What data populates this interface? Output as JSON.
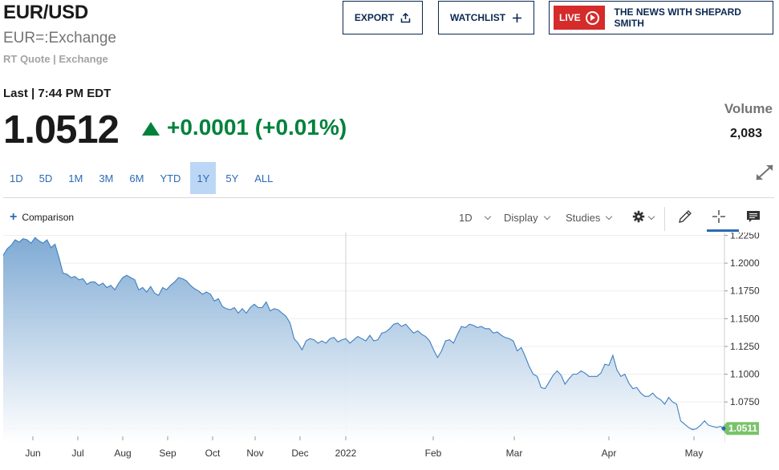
{
  "header": {
    "symbol": "EUR/USD",
    "exchange": "EUR=:Exchange",
    "quote_source": "RT Quote | Exchange",
    "export_label": "EXPORT",
    "watchlist_label": "WATCHLIST",
    "live_label": "LIVE",
    "live_show": "THE NEWS WITH SHEPARD SMITH"
  },
  "quote": {
    "last_time": "Last | 7:44 PM EDT",
    "price": "1.0512",
    "change": "+0.0001 (+0.01%)",
    "change_color": "#00823b",
    "volume_label": "Volume",
    "volume_value": "2,083"
  },
  "ranges": [
    "1D",
    "5D",
    "1M",
    "3M",
    "6M",
    "YTD",
    "1Y",
    "5Y",
    "ALL"
  ],
  "active_range": "1Y",
  "toolbar": {
    "comparison_label": "Comparison",
    "interval_label": "1D",
    "display_label": "Display",
    "studies_label": "Studies"
  },
  "icons": [
    "share-icon",
    "plus-icon",
    "play-icon",
    "expand-icon",
    "gear-icon",
    "pencil-icon",
    "crosshair-icon",
    "comment-icon"
  ],
  "colors": {
    "navy": "#0a2850",
    "link_blue": "#2b6ab5",
    "live_red": "#d52b2b",
    "up_green": "#00823b",
    "last_tag": "#79c36a"
  },
  "chart_data": {
    "type": "area",
    "x_tick_labels": [
      "Jun",
      "Jul",
      "Aug",
      "Sep",
      "Oct",
      "Nov",
      "Dec",
      "2022",
      "Feb",
      "Mar",
      "Apr",
      "May"
    ],
    "y_tick_labels": [
      "1.2250",
      "1.2000",
      "1.1750",
      "1.1500",
      "1.1250",
      "1.1000",
      "1.0750"
    ],
    "ylim": [
      1.0455,
      1.2275
    ],
    "last_value_label": "1.0511",
    "last_value": 1.0511,
    "series": [
      {
        "values": [
          1.207,
          1.213,
          1.216,
          1.221,
          1.219,
          1.222,
          1.221,
          1.218,
          1.223,
          1.22,
          1.218,
          1.221,
          1.214,
          1.217,
          1.205,
          1.191,
          1.19,
          1.187,
          1.188,
          1.185,
          1.186,
          1.181,
          1.183,
          1.183,
          1.18,
          1.182,
          1.178,
          1.18,
          1.176,
          1.182,
          1.187,
          1.189,
          1.187,
          1.185,
          1.176,
          1.178,
          1.174,
          1.179,
          1.173,
          1.171,
          1.178,
          1.176,
          1.18,
          1.183,
          1.187,
          1.186,
          1.184,
          1.18,
          1.177,
          1.175,
          1.172,
          1.174,
          1.172,
          1.166,
          1.168,
          1.161,
          1.159,
          1.158,
          1.16,
          1.155,
          1.159,
          1.155,
          1.16,
          1.163,
          1.16,
          1.16,
          1.165,
          1.157,
          1.159,
          1.158,
          1.155,
          1.152,
          1.146,
          1.132,
          1.128,
          1.122,
          1.13,
          1.132,
          1.131,
          1.128,
          1.13,
          1.128,
          1.132,
          1.133,
          1.129,
          1.131,
          1.132,
          1.128,
          1.131,
          1.134,
          1.132,
          1.13,
          1.135,
          1.13,
          1.131,
          1.137,
          1.138,
          1.141,
          1.145,
          1.146,
          1.143,
          1.145,
          1.141,
          1.137,
          1.139,
          1.136,
          1.134,
          1.13,
          1.122,
          1.115,
          1.121,
          1.13,
          1.131,
          1.128,
          1.136,
          1.143,
          1.142,
          1.145,
          1.144,
          1.142,
          1.143,
          1.141,
          1.141,
          1.137,
          1.138,
          1.135,
          1.133,
          1.132,
          1.13,
          1.121,
          1.124,
          1.116,
          1.107,
          1.1,
          1.098,
          1.088,
          1.087,
          1.093,
          1.099,
          1.103,
          1.099,
          1.091,
          1.096,
          1.1,
          1.1,
          1.103,
          1.101,
          1.098,
          1.098,
          1.098,
          1.101,
          1.109,
          1.108,
          1.117,
          1.104,
          1.098,
          1.1,
          1.092,
          1.087,
          1.088,
          1.083,
          1.08,
          1.08,
          1.083,
          1.079,
          1.077,
          1.073,
          1.079,
          1.075,
          1.073,
          1.058,
          1.055,
          1.052,
          1.05,
          1.051,
          1.054,
          1.058,
          1.054,
          1.053,
          1.052,
          1.053,
          1.051
        ]
      }
    ],
    "grid": true
  }
}
